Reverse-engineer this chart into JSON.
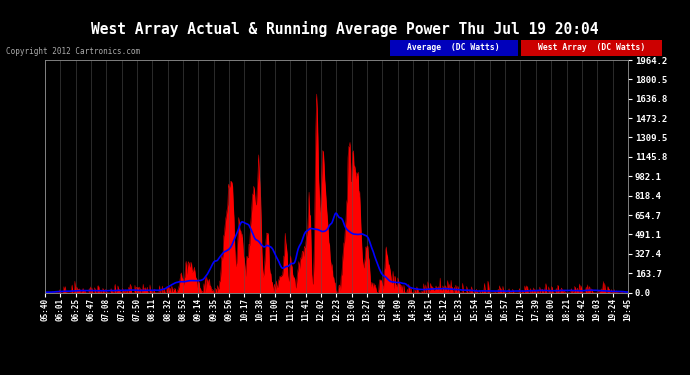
{
  "title": "West Array Actual & Running Average Power Thu Jul 19 20:04",
  "copyright": "Copyright 2012 Cartronics.com",
  "legend_labels": [
    "Average  (DC Watts)",
    "West Array  (DC Watts)"
  ],
  "yticks": [
    0.0,
    163.7,
    327.4,
    491.1,
    654.7,
    818.4,
    982.1,
    1145.8,
    1309.5,
    1473.2,
    1636.8,
    1800.5,
    1964.2
  ],
  "ymax": 1964.2,
  "bg_color": "#000000",
  "grid_color": "#555555",
  "fill_color": "#ff0000",
  "line_color": "#0000ff",
  "title_color": "#ffffff",
  "tick_label_color": "#ffffff",
  "xtick_labels": [
    "05:40",
    "06:01",
    "06:25",
    "06:47",
    "07:08",
    "07:29",
    "07:50",
    "08:11",
    "08:32",
    "08:53",
    "09:14",
    "09:35",
    "09:56",
    "10:17",
    "10:38",
    "11:00",
    "11:21",
    "11:41",
    "12:02",
    "12:23",
    "13:06",
    "13:27",
    "13:48",
    "14:09",
    "14:30",
    "14:51",
    "15:12",
    "15:33",
    "15:54",
    "16:16",
    "16:57",
    "17:18",
    "17:39",
    "18:00",
    "18:21",
    "18:42",
    "19:03",
    "19:24",
    "19:45"
  ]
}
